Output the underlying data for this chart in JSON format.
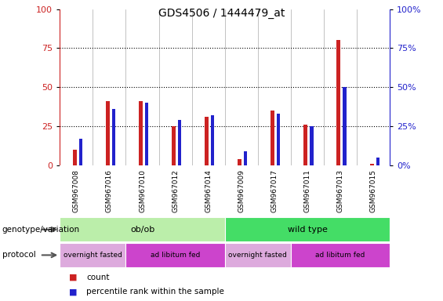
{
  "title": "GDS4506 / 1444479_at",
  "samples": [
    "GSM967008",
    "GSM967016",
    "GSM967010",
    "GSM967012",
    "GSM967014",
    "GSM967009",
    "GSM967017",
    "GSM967011",
    "GSM967013",
    "GSM967015"
  ],
  "count_values": [
    10,
    41,
    41,
    25,
    31,
    4,
    35,
    26,
    80,
    1
  ],
  "percentile_values": [
    17,
    36,
    40,
    29,
    32,
    9,
    33,
    25,
    50,
    5
  ],
  "ylim": [
    0,
    100
  ],
  "yticks": [
    0,
    25,
    50,
    75,
    100
  ],
  "count_color": "#cc2222",
  "percentile_color": "#2222cc",
  "label_bg_color": "#cccccc",
  "genotype_groups": [
    {
      "label": "ob/ob",
      "start": 0,
      "end": 5,
      "color": "#bbeeaa"
    },
    {
      "label": "wild type",
      "start": 5,
      "end": 10,
      "color": "#44dd66"
    }
  ],
  "protocol_groups": [
    {
      "label": "overnight fasted",
      "start": 0,
      "end": 2,
      "color": "#ddaadd"
    },
    {
      "label": "ad libitum fed",
      "start": 2,
      "end": 5,
      "color": "#cc44cc"
    },
    {
      "label": "overnight fasted",
      "start": 5,
      "end": 7,
      "color": "#ddaadd"
    },
    {
      "label": "ad libitum fed",
      "start": 7,
      "end": 10,
      "color": "#cc44cc"
    }
  ],
  "legend_items": [
    {
      "label": "count",
      "color": "#cc2222"
    },
    {
      "label": "percentile rank within the sample",
      "color": "#2222cc"
    }
  ],
  "genotype_label": "genotype/variation",
  "protocol_label": "protocol"
}
